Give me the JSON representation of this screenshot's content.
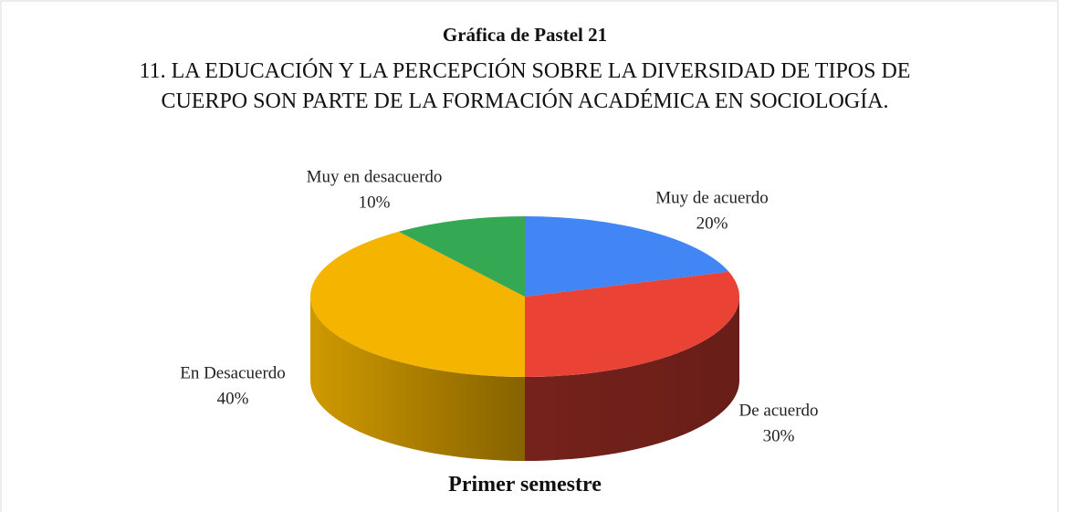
{
  "chart_data": {
    "type": "pie3d",
    "title": "Gráfica de Pastel 21",
    "subtitle": "11. LA EDUCACIÓN Y LA PERCEPCIÓN SOBRE LA DIVERSIDAD DE TIPOS DE CUERPO SON PARTE DE LA FORMACIÓN ACADÉMICA EN SOCIOLOGÍA.",
    "x_label": "Primer semestre",
    "categories": [
      "Muy de acuerdo",
      "De acuerdo",
      "En Desacuerdo",
      "Muy en desacuerdo"
    ],
    "values": [
      20,
      30,
      40,
      10
    ],
    "value_labels": [
      "20%",
      "30%",
      "40%",
      "10%"
    ],
    "colors": [
      "#4285f4",
      "#ea4335",
      "#f4b400",
      "#34a853"
    ]
  }
}
